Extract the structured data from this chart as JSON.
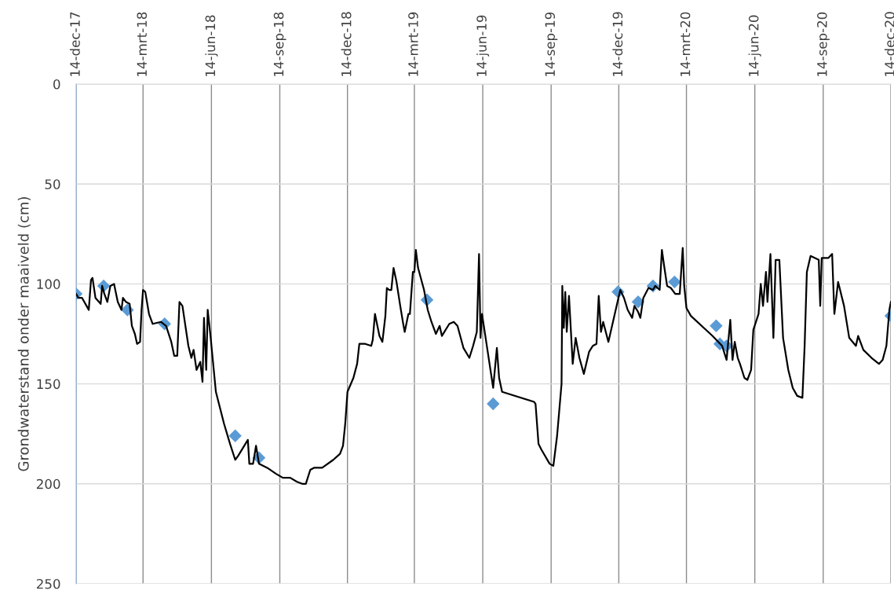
{
  "chart_data": {
    "type": "line",
    "ylabel": "Grondwaterstand onder maaiveld (cm)",
    "xlim": [
      "2017-12-14",
      "2020-12-14"
    ],
    "ylim": [
      250,
      0
    ],
    "yticks": [
      0,
      50,
      100,
      150,
      200,
      250
    ],
    "xticks": [
      {
        "value": "2017-12-14",
        "label": "14-dec-17"
      },
      {
        "value": "2018-03-14",
        "label": "14-mrt-18"
      },
      {
        "value": "2018-06-14",
        "label": "14-jun-18"
      },
      {
        "value": "2018-09-14",
        "label": "14-sep-18"
      },
      {
        "value": "2018-12-14",
        "label": "14-dec-18"
      },
      {
        "value": "2019-03-14",
        "label": "14-mrt-19"
      },
      {
        "value": "2019-06-14",
        "label": "14-jun-19"
      },
      {
        "value": "2019-09-14",
        "label": "14-sep-19"
      },
      {
        "value": "2019-12-14",
        "label": "14-dec-19"
      },
      {
        "value": "2020-03-14",
        "label": "14-mrt-20"
      },
      {
        "value": "2020-06-14",
        "label": "14-jun-20"
      },
      {
        "value": "2020-09-14",
        "label": "14-sep-20"
      },
      {
        "value": "2020-12-14",
        "label": "14-dec-20"
      }
    ],
    "grid": true,
    "legend": false,
    "series": [
      {
        "color": "#000000",
        "marker": "none",
        "line_style": "solid",
        "x": [
          "2017-12-14",
          "2017-12-17",
          "2017-12-22",
          "2017-12-28",
          "2017-12-31",
          "2018-01-03",
          "2018-01-05",
          "2018-01-09",
          "2018-01-16",
          "2018-01-18",
          "2018-01-21",
          "2018-01-25",
          "2018-01-29",
          "2018-02-03",
          "2018-02-08",
          "2018-02-13",
          "2018-02-15",
          "2018-02-19",
          "2018-02-24",
          "2018-02-27",
          "2018-03-03",
          "2018-03-06",
          "2018-03-10",
          "2018-03-12",
          "2018-03-14",
          "2018-03-17",
          "2018-03-22",
          "2018-03-27",
          "2018-04-07",
          "2018-04-14",
          "2018-04-21",
          "2018-04-25",
          "2018-04-29",
          "2018-05-02",
          "2018-05-06",
          "2018-05-14",
          "2018-05-18",
          "2018-05-21",
          "2018-05-25",
          "2018-05-30",
          "2018-06-02",
          "2018-06-04",
          "2018-06-07",
          "2018-06-09",
          "2018-06-13",
          "2018-06-20",
          "2018-07-01",
          "2018-07-09",
          "2018-07-16",
          "2018-07-20",
          "2018-08-02",
          "2018-08-04",
          "2018-08-09",
          "2018-08-13",
          "2018-08-17",
          "2018-08-28",
          "2018-09-09",
          "2018-09-18",
          "2018-09-28",
          "2018-10-07",
          "2018-10-14",
          "2018-10-19",
          "2018-10-25",
          "2018-10-30",
          "2018-11-10",
          "2018-11-25",
          "2018-12-04",
          "2018-12-08",
          "2018-12-11",
          "2018-12-14",
          "2018-12-22",
          "2018-12-27",
          "2018-12-30",
          "2019-01-07",
          "2019-01-15",
          "2019-01-17",
          "2019-01-20",
          "2019-01-26",
          "2019-01-30",
          "2019-02-03",
          "2019-02-05",
          "2019-02-08",
          "2019-02-11",
          "2019-02-14",
          "2019-02-18",
          "2019-02-23",
          "2019-02-27",
          "2019-03-01",
          "2019-03-06",
          "2019-03-08",
          "2019-03-12",
          "2019-03-14",
          "2019-03-16",
          "2019-03-19",
          "2019-03-27",
          "2019-04-01",
          "2019-04-06",
          "2019-04-12",
          "2019-04-17",
          "2019-04-20",
          "2019-04-30",
          "2019-05-06",
          "2019-05-11",
          "2019-05-19",
          "2019-05-27",
          "2019-06-01",
          "2019-06-06",
          "2019-06-09",
          "2019-06-11",
          "2019-06-13",
          "2019-06-28",
          "2019-07-03",
          "2019-07-06",
          "2019-07-10",
          "2019-08-22",
          "2019-08-24",
          "2019-08-28",
          "2019-09-01",
          "2019-09-12",
          "2019-09-17",
          "2019-09-22",
          "2019-09-28",
          "2019-09-29",
          "2019-10-01",
          "2019-10-03",
          "2019-10-05",
          "2019-10-08",
          "2019-10-13",
          "2019-10-17",
          "2019-10-22",
          "2019-10-28",
          "2019-11-04",
          "2019-11-09",
          "2019-11-14",
          "2019-11-17",
          "2019-11-20",
          "2019-11-23",
          "2019-11-30",
          "2019-12-16",
          "2019-12-21",
          "2019-12-26",
          "2020-01-01",
          "2020-01-04",
          "2020-01-09",
          "2020-01-12",
          "2020-01-16",
          "2020-01-23",
          "2020-01-29",
          "2020-02-01",
          "2020-02-07",
          "2020-02-10",
          "2020-02-13",
          "2020-02-17",
          "2020-02-22",
          "2020-02-28",
          "2020-03-05",
          "2020-03-09",
          "2020-03-11",
          "2020-03-14",
          "2020-03-20",
          "2020-04-18",
          "2020-05-01",
          "2020-05-07",
          "2020-05-12",
          "2020-05-15",
          "2020-05-18",
          "2020-05-22",
          "2020-05-25",
          "2020-05-31",
          "2020-06-04",
          "2020-06-09",
          "2020-06-12",
          "2020-06-19",
          "2020-06-22",
          "2020-06-25",
          "2020-06-29",
          "2020-07-01",
          "2020-07-05",
          "2020-07-09",
          "2020-07-12",
          "2020-07-17",
          "2020-07-22",
          "2020-07-29",
          "2020-08-04",
          "2020-08-10",
          "2020-08-17",
          "2020-08-20",
          "2020-08-23",
          "2020-08-28",
          "2020-09-08",
          "2020-09-10",
          "2020-09-12",
          "2020-09-21",
          "2020-09-26",
          "2020-09-29",
          "2020-10-04",
          "2020-10-12",
          "2020-10-19",
          "2020-10-28",
          "2020-10-31",
          "2020-11-07",
          "2020-11-18",
          "2020-11-28",
          "2020-12-03",
          "2020-12-08",
          "2020-12-12",
          "2020-12-14"
        ],
        "values": [
          105,
          107,
          107,
          111,
          113,
          98,
          97,
          107,
          110,
          101,
          105,
          109,
          101,
          100,
          109,
          113,
          107,
          109,
          110,
          121,
          125,
          130,
          129,
          113,
          103,
          104,
          115,
          120,
          119,
          121,
          129,
          136,
          136,
          109,
          111,
          131,
          137,
          133,
          143,
          139,
          149,
          117,
          143,
          113,
          127,
          154,
          170,
          180,
          188,
          186,
          178,
          190,
          190,
          181,
          190,
          192,
          195,
          197,
          197,
          199,
          200,
          200,
          193,
          192,
          192,
          188,
          185,
          181,
          170,
          154,
          147,
          140,
          130,
          130,
          131,
          128,
          115,
          126,
          129,
          116,
          102,
          103,
          103,
          92,
          99,
          111,
          120,
          124,
          115,
          115,
          94,
          94,
          83,
          92,
          103,
          113,
          119,
          125,
          121,
          126,
          120,
          119,
          121,
          132,
          137,
          131,
          124,
          85,
          127,
          115,
          152,
          132,
          147,
          154,
          159,
          160,
          180,
          183,
          190,
          191,
          176,
          150,
          101,
          122,
          104,
          124,
          106,
          140,
          127,
          137,
          145,
          134,
          131,
          130,
          106,
          124,
          119,
          129,
          103,
          107,
          113,
          117,
          111,
          114,
          117,
          107,
          102,
          103,
          101,
          103,
          83,
          91,
          101,
          102,
          105,
          105,
          82,
          101,
          112,
          116,
          126,
          131,
          138,
          118,
          138,
          129,
          137,
          140,
          147,
          148,
          143,
          123,
          115,
          100,
          111,
          94,
          109,
          85,
          127,
          88,
          88,
          127,
          143,
          152,
          156,
          157,
          131,
          94,
          86,
          88,
          111,
          87,
          87,
          85,
          115,
          99,
          111,
          127,
          131,
          126,
          133,
          137,
          140,
          138,
          131,
          113,
          109
        ]
      },
      {
        "type": "scatter",
        "color": "#5b9bd5",
        "marker": "diamond",
        "x": [
          "2017-12-14",
          "2018-01-20",
          "2018-02-21",
          "2018-04-12",
          "2018-07-16",
          "2018-08-17",
          "2019-03-31",
          "2019-06-28",
          "2019-12-13",
          "2020-01-09",
          "2020-01-29",
          "2020-02-27",
          "2020-04-23",
          "2020-04-28",
          "2020-05-07",
          "2020-12-14"
        ],
        "values": [
          105,
          101,
          113,
          120,
          176,
          187,
          108,
          160,
          104,
          109,
          101,
          99,
          121,
          130,
          131,
          116
        ]
      }
    ]
  }
}
